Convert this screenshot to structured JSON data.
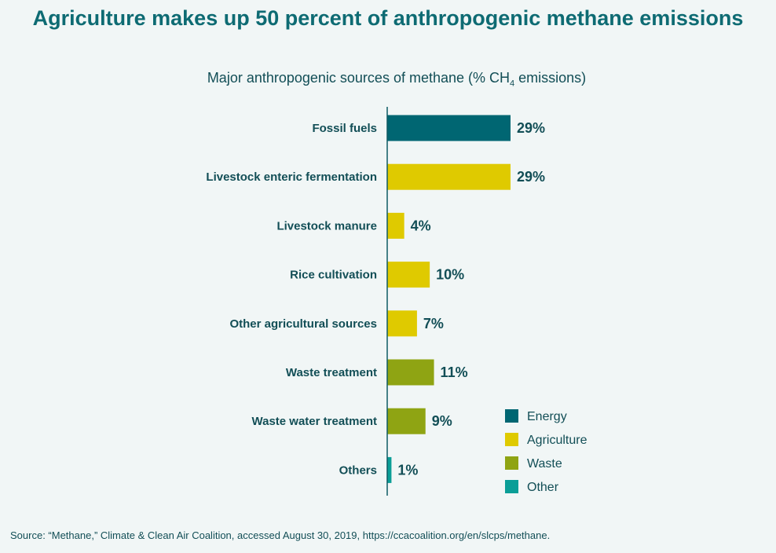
{
  "title": "Agriculture makes up 50 percent of anthropogenic methane emissions",
  "subtitle_main": "Major anthropogenic sources of methane (% CH",
  "subtitle_sub": "4",
  "subtitle_end": " emissions)",
  "source": "Source: “Methane,” Climate & Clean Air Coalition, accessed August 30, 2019, https://ccacoalition.org/en/slcps/methane.",
  "colors": {
    "Energy": "#006672",
    "Agriculture": "#dfca00",
    "Waste": "#8fa413",
    "Other": "#0b9e97"
  },
  "chart_data": {
    "type": "bar",
    "orientation": "horizontal",
    "categories": [
      "Fossil fuels",
      "Livestock enteric fermentation",
      "Livestock manure",
      "Rice cultivation",
      "Other agricultural sources",
      "Waste treatment",
      "Waste water treatment",
      "Others"
    ],
    "values": [
      29,
      29,
      4,
      10,
      7,
      11,
      9,
      1
    ],
    "value_labels": [
      "29%",
      "29%",
      "4%",
      "10%",
      "7%",
      "11%",
      "9%",
      "1%"
    ],
    "groups": [
      "Energy",
      "Agriculture",
      "Agriculture",
      "Agriculture",
      "Agriculture",
      "Waste",
      "Waste",
      "Other"
    ],
    "legend": [
      "Energy",
      "Agriculture",
      "Waste",
      "Other"
    ],
    "legend_position": "bottom-right",
    "xlim": [
      0,
      30
    ],
    "grid": false
  }
}
